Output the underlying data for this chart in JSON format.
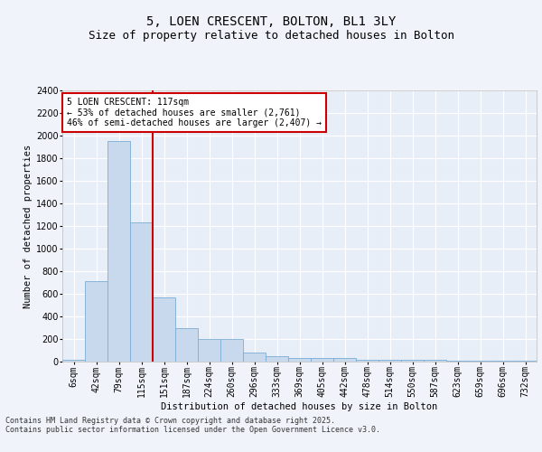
{
  "title_line1": "5, LOEN CRESCENT, BOLTON, BL1 3LY",
  "title_line2": "Size of property relative to detached houses in Bolton",
  "xlabel": "Distribution of detached houses by size in Bolton",
  "ylabel": "Number of detached properties",
  "bar_color": "#c8d9ee",
  "bar_edge_color": "#7aadd4",
  "background_color": "#e8eef8",
  "grid_color": "#ffffff",
  "categories": [
    "6sqm",
    "42sqm",
    "79sqm",
    "115sqm",
    "151sqm",
    "187sqm",
    "224sqm",
    "260sqm",
    "296sqm",
    "333sqm",
    "369sqm",
    "405sqm",
    "442sqm",
    "478sqm",
    "514sqm",
    "550sqm",
    "587sqm",
    "623sqm",
    "659sqm",
    "696sqm",
    "732sqm"
  ],
  "values": [
    15,
    710,
    1950,
    1230,
    570,
    300,
    200,
    200,
    80,
    45,
    35,
    35,
    35,
    15,
    15,
    15,
    20,
    5,
    5,
    5,
    5
  ],
  "ylim": [
    0,
    2400
  ],
  "yticks": [
    0,
    200,
    400,
    600,
    800,
    1000,
    1200,
    1400,
    1600,
    1800,
    2000,
    2200,
    2400
  ],
  "vline_color": "#cc0000",
  "annotation_box_text": "5 LOEN CRESCENT: 117sqm\n← 53% of detached houses are smaller (2,761)\n46% of semi-detached houses are larger (2,407) →",
  "footer_text": "Contains HM Land Registry data © Crown copyright and database right 2025.\nContains public sector information licensed under the Open Government Licence v3.0.",
  "title_fontsize": 10,
  "subtitle_fontsize": 9,
  "label_fontsize": 7.5,
  "tick_fontsize": 7,
  "ann_fontsize": 7,
  "footer_fontsize": 6
}
